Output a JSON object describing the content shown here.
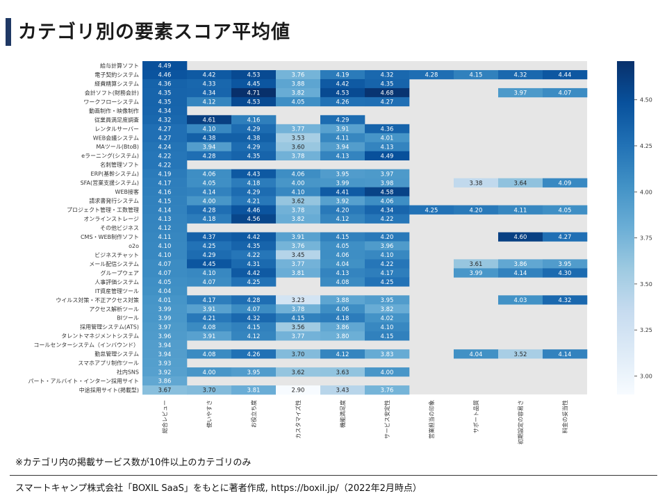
{
  "page": {
    "title": "カテゴリ別の要素スコア平均値",
    "note": "※カテゴリ内の掲載サービス数が10件以上のカテゴリのみ",
    "source": "スマートキャンプ株式会社「BOXIL SaaS」をもとに著者作成, https://boxil.jp/（2022年2月時点）"
  },
  "chart_data": {
    "type": "heatmap",
    "title": "カテゴリ別の要素スコア平均値",
    "rows": [
      "給与計算ソフト",
      "電子契約システム",
      "経費精算システム",
      "会計ソフト(財務会計)",
      "ワークフローシステム",
      "動画制作・映像制作",
      "従業員満足度調査",
      "レンタルサーバー",
      "WEB会議システム",
      "MAツール(BtoB)",
      "eラーニング(システム)",
      "名刺管理ソフト",
      "ERP(基幹システム)",
      "SFA(営業支援システム)",
      "WEB接客",
      "請求書発行システム",
      "プロジェクト管理・工数管理",
      "オンラインストレージ",
      "その他ビジネス",
      "CMS・WEB制作ソフト",
      "o2o",
      "ビジネスチャット",
      "メール配信システム",
      "グループウェア",
      "人事評価システム",
      "IT資産管理ツール",
      "ウイルス対策・不正アクセス対策",
      "アクセス解析ツール",
      "BIツール",
      "採用管理システム(ATS)",
      "タレントマネジメントシステム",
      "コールセンターシステム（インバウンド）",
      "勤怠管理システム",
      "スマホアプリ制作ツール",
      "社内SNS",
      "パート・アルバイト・インターン採用サイト",
      "中途採用サイト(掲載型)"
    ],
    "columns": [
      "総合レビュー",
      "使いやすさ",
      "お役立ち度",
      "カスタマイズ性",
      "機能満足度",
      "サービス安定性",
      "営業担当の印象",
      "サポート品質",
      "初期設定の容易さ",
      "料金の妥当性"
    ],
    "values": [
      [
        4.49,
        null,
        null,
        null,
        null,
        null,
        null,
        null,
        null,
        null
      ],
      [
        4.46,
        4.42,
        4.53,
        3.76,
        4.19,
        4.32,
        4.28,
        4.15,
        4.32,
        4.44
      ],
      [
        4.36,
        4.33,
        4.45,
        3.88,
        4.42,
        4.35,
        null,
        null,
        null,
        null
      ],
      [
        4.35,
        4.34,
        4.71,
        3.82,
        4.53,
        4.68,
        null,
        null,
        3.97,
        4.07
      ],
      [
        4.35,
        4.12,
        4.53,
        4.05,
        4.26,
        4.27,
        null,
        null,
        null,
        null
      ],
      [
        4.34,
        null,
        null,
        null,
        null,
        null,
        null,
        null,
        null,
        null
      ],
      [
        4.32,
        4.61,
        4.16,
        null,
        4.29,
        null,
        null,
        null,
        null,
        null
      ],
      [
        4.27,
        4.1,
        4.29,
        3.77,
        3.91,
        4.36,
        null,
        null,
        null,
        null
      ],
      [
        4.27,
        4.38,
        4.38,
        3.53,
        4.11,
        4.01,
        null,
        null,
        null,
        null
      ],
      [
        4.24,
        3.94,
        4.29,
        3.6,
        3.94,
        4.13,
        null,
        null,
        null,
        null
      ],
      [
        4.22,
        4.28,
        4.35,
        3.78,
        4.13,
        4.49,
        null,
        null,
        null,
        null
      ],
      [
        4.22,
        null,
        null,
        null,
        null,
        null,
        null,
        null,
        null,
        null
      ],
      [
        4.19,
        4.06,
        4.43,
        4.06,
        3.95,
        3.97,
        null,
        null,
        null,
        null
      ],
      [
        4.17,
        4.05,
        4.18,
        4.0,
        3.99,
        3.98,
        null,
        3.38,
        3.64,
        4.09
      ],
      [
        4.16,
        4.14,
        4.29,
        4.1,
        4.41,
        4.58,
        null,
        null,
        null,
        null
      ],
      [
        4.15,
        4.0,
        4.21,
        3.62,
        3.92,
        4.06,
        null,
        null,
        null,
        null
      ],
      [
        4.14,
        4.28,
        4.46,
        3.78,
        4.2,
        4.34,
        4.25,
        4.2,
        4.11,
        4.05
      ],
      [
        4.13,
        4.18,
        4.56,
        3.82,
        4.12,
        4.22,
        null,
        null,
        null,
        null
      ],
      [
        4.12,
        null,
        null,
        null,
        null,
        null,
        null,
        null,
        null,
        null
      ],
      [
        4.11,
        4.37,
        4.42,
        3.91,
        4.15,
        4.2,
        null,
        null,
        4.6,
        4.27
      ],
      [
        4.1,
        4.25,
        4.35,
        3.76,
        4.05,
        3.96,
        null,
        null,
        null,
        null
      ],
      [
        4.1,
        4.29,
        4.22,
        3.45,
        4.06,
        4.1,
        null,
        null,
        null,
        null
      ],
      [
        4.07,
        4.45,
        4.31,
        3.77,
        4.04,
        4.22,
        null,
        3.61,
        3.86,
        3.95
      ],
      [
        4.07,
        4.1,
        4.42,
        3.81,
        4.13,
        4.17,
        null,
        3.99,
        4.14,
        4.3
      ],
      [
        4.05,
        4.07,
        4.25,
        null,
        4.08,
        4.25,
        null,
        null,
        null,
        null
      ],
      [
        4.04,
        null,
        null,
        null,
        null,
        null,
        null,
        null,
        null,
        null
      ],
      [
        4.01,
        4.17,
        4.28,
        3.23,
        3.88,
        3.95,
        null,
        null,
        4.03,
        4.32
      ],
      [
        3.99,
        3.91,
        4.07,
        3.78,
        4.06,
        3.82,
        null,
        null,
        null,
        null
      ],
      [
        3.99,
        4.21,
        4.32,
        4.15,
        4.18,
        4.02,
        null,
        null,
        null,
        null
      ],
      [
        3.97,
        4.08,
        4.15,
        3.56,
        3.86,
        4.1,
        null,
        null,
        null,
        null
      ],
      [
        3.96,
        3.91,
        4.12,
        3.77,
        3.8,
        4.15,
        null,
        null,
        null,
        null
      ],
      [
        3.94,
        null,
        null,
        null,
        null,
        null,
        null,
        null,
        null,
        null
      ],
      [
        3.94,
        4.08,
        4.26,
        3.7,
        4.12,
        3.83,
        null,
        4.04,
        3.52,
        4.14
      ],
      [
        3.93,
        null,
        null,
        null,
        null,
        null,
        null,
        null,
        null,
        null
      ],
      [
        3.92,
        4.0,
        3.95,
        3.62,
        3.63,
        4.0,
        null,
        null,
        null,
        null
      ],
      [
        3.86,
        null,
        null,
        null,
        null,
        null,
        null,
        null,
        null,
        null
      ],
      [
        3.67,
        3.7,
        3.81,
        2.9,
        3.43,
        3.76,
        null,
        null,
        null,
        null
      ]
    ],
    "colorbar": {
      "ticks": [
        "3.00",
        "3.25",
        "3.50",
        "3.75",
        "4.00",
        "4.25",
        "4.50"
      ],
      "range": [
        2.9,
        4.71
      ],
      "low_color": "#f7fbff",
      "high_color": "#08306b"
    },
    "missing_color": "#e6e6e6",
    "value_format": "2 decimals"
  }
}
